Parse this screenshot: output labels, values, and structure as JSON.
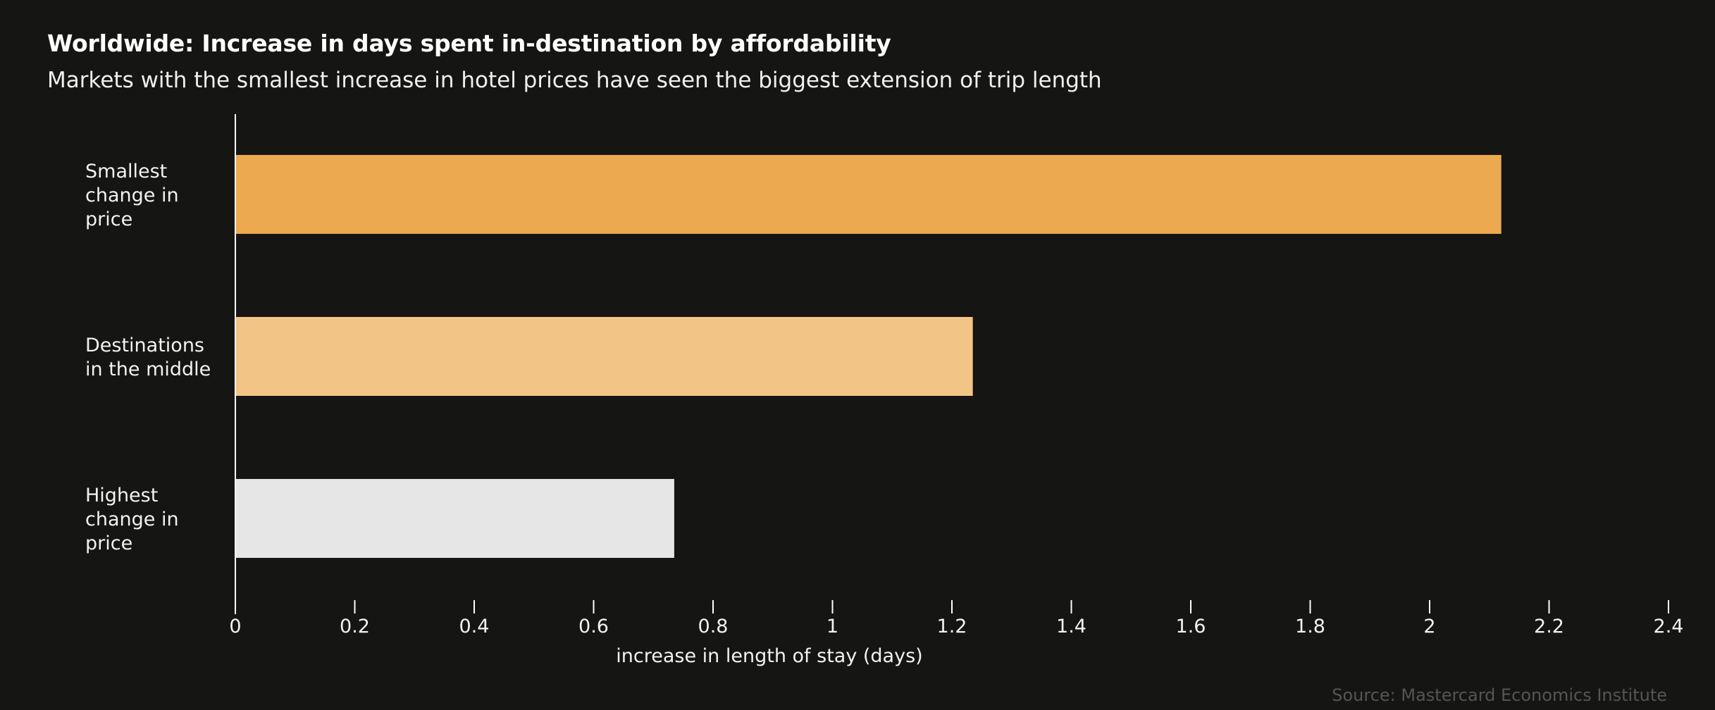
{
  "header": {
    "title": "Worldwide: Increase in days spent in-destination by affordability",
    "subtitle": "Markets with the smallest increase in hotel prices have seen the biggest extension of trip length"
  },
  "footer": {
    "source": "Source: Mastercard Economics Institute"
  },
  "chart_data": {
    "type": "bar",
    "orientation": "horizontal",
    "title": "Worldwide: Increase in days spent in-destination by affordability",
    "subtitle": "Markets with the smallest increase in hotel prices have seen the biggest extension of trip length",
    "xlabel": "increase in length of stay (days)",
    "ylabel": "",
    "categories": [
      [
        "Smallest",
        "change in",
        "price"
      ],
      [
        "Destinations",
        "in the middle"
      ],
      [
        "Highest",
        "change in",
        "price"
      ]
    ],
    "values": [
      2.12,
      1.235,
      0.735
    ],
    "bar_colors": [
      "#eca94f",
      "#f2c486",
      "#e6e6e6"
    ],
    "xlim": [
      0,
      2.4
    ],
    "xticks": [
      0,
      0.2,
      0.4,
      0.6,
      0.8,
      1,
      1.2,
      1.4,
      1.6,
      1.8,
      2,
      2.2,
      2.4
    ],
    "xtick_labels": [
      "0",
      "0.2",
      "0.4",
      "0.6",
      "0.8",
      "1",
      "1.2",
      "1.4",
      "1.6",
      "1.8",
      "2",
      "2.2",
      "2.4"
    ],
    "grid": false,
    "legend": "none",
    "colors": {
      "background": "#151514",
      "axis": "#ffffff",
      "text": "#f2f2f2",
      "source_text": "#555553"
    }
  }
}
